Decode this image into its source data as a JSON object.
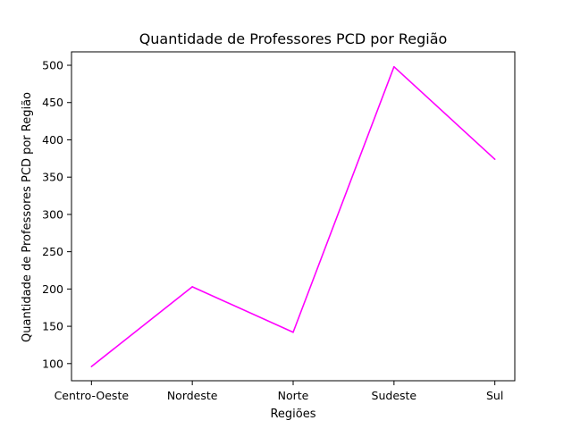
{
  "chart_data": {
    "type": "line",
    "title": "Quantidade de Professores PCD por Região",
    "xlabel": "Regiões",
    "ylabel": "Quantidade de Professores PCD por Região",
    "categories": [
      "Centro-Oeste",
      "Nordeste",
      "Norte",
      "Sudeste",
      "Sul"
    ],
    "series": [
      {
        "values": [
          96,
          203,
          142,
          498,
          374
        ],
        "color": "#ff00ff"
      }
    ],
    "y_ticks": [
      100,
      150,
      200,
      250,
      300,
      350,
      400,
      450,
      500
    ],
    "ylim": [
      77,
      518
    ],
    "grid": false,
    "legend": "none"
  }
}
